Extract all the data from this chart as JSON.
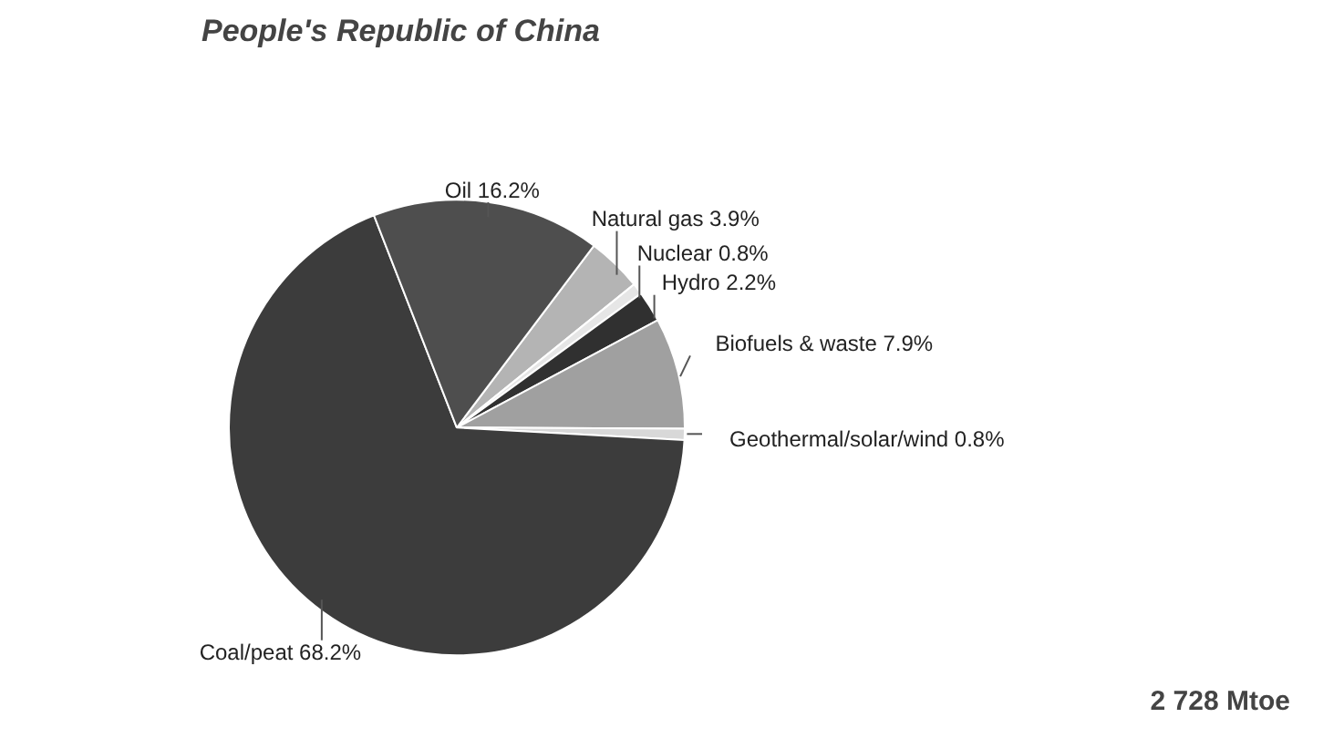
{
  "chart_data": {
    "type": "pie",
    "title": "People's Republic of China",
    "categories": [
      "Natural gas",
      "Nuclear",
      "Hydro",
      "Biofuels & waste",
      "Geothermal/solar/wind",
      "Coal/peat",
      "Oil"
    ],
    "values": [
      3.9,
      0.8,
      2.2,
      7.9,
      0.8,
      68.2,
      16.2
    ],
    "colors": [
      "#b4b4b4",
      "#e6e6e6",
      "#303030",
      "#a0a0a0",
      "#d8d8d8",
      "#3c3c3c",
      "#4e4e4e"
    ],
    "value_labels": [
      "3.9%",
      "0.8%",
      "2.2%",
      "7.9%",
      "0.8%",
      "68.2%",
      "16.2%"
    ],
    "annotations": [
      "2 728 Mtoe"
    ]
  }
}
